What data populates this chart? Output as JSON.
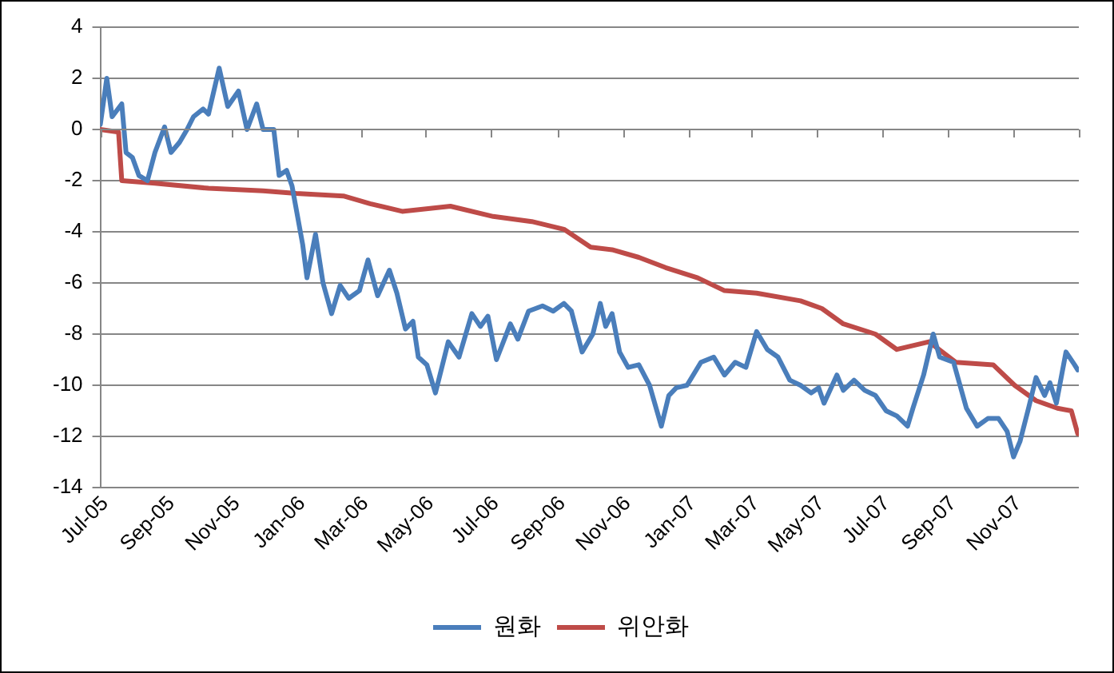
{
  "chart_data": {
    "type": "line",
    "grid": "y",
    "legend": "bottom",
    "line_style": "solid",
    "marker": "none",
    "xlim": [
      "2005-07",
      "2008-01"
    ],
    "xticks": [
      {
        "value": "2005-07",
        "label": "Jul-05"
      },
      {
        "value": "2005-09",
        "label": "Sep-05"
      },
      {
        "value": "2005-11",
        "label": "Nov-05"
      },
      {
        "value": "2006-01",
        "label": "Jan-06"
      },
      {
        "value": "2006-03",
        "label": "Mar-06"
      },
      {
        "value": "2006-05",
        "label": "May-06"
      },
      {
        "value": "2006-07",
        "label": "Jul-06"
      },
      {
        "value": "2006-09",
        "label": "Sep-06"
      },
      {
        "value": "2006-11",
        "label": "Nov-06"
      },
      {
        "value": "2007-01",
        "label": "Jan-07"
      },
      {
        "value": "2007-03",
        "label": "Mar-07"
      },
      {
        "value": "2007-05",
        "label": "May-07"
      },
      {
        "value": "2007-07",
        "label": "Jul-07"
      },
      {
        "value": "2007-09",
        "label": "Sep-07"
      },
      {
        "value": "2007-11",
        "label": "Nov-07"
      },
      {
        "value": "2008-01",
        "label": null
      }
    ],
    "ylim": [
      -14,
      4
    ],
    "yticks": [
      -14,
      -12,
      -10,
      -8,
      -6,
      -4,
      -2,
      0,
      2,
      4
    ],
    "series": [
      {
        "name": "원화",
        "color": "#4a7ebb",
        "x": [
          "2005-07-01",
          "2005-07-07",
          "2005-07-12",
          "2005-07-21",
          "2005-07-25",
          "2005-07-31",
          "2005-08-06",
          "2005-08-14",
          "2005-08-21",
          "2005-08-30",
          "2005-09-05",
          "2005-09-13",
          "2005-09-20",
          "2005-09-26",
          "2005-10-05",
          "2005-10-10",
          "2005-10-20",
          "2005-10-28",
          "2005-11-07",
          "2005-11-15",
          "2005-11-24",
          "2005-11-30",
          "2005-12-10",
          "2005-12-15",
          "2005-12-22",
          "2005-12-27",
          "2006-01-06",
          "2006-01-10",
          "2006-01-18",
          "2006-01-25",
          "2006-02-02",
          "2006-02-10",
          "2006-02-18",
          "2006-02-28",
          "2006-03-08",
          "2006-03-17",
          "2006-03-28",
          "2006-04-04",
          "2006-04-12",
          "2006-04-19",
          "2006-04-24",
          "2006-05-02",
          "2006-05-10",
          "2006-05-22",
          "2006-06-01",
          "2006-06-13",
          "2006-06-21",
          "2006-06-28",
          "2006-07-06",
          "2006-07-19",
          "2006-07-26",
          "2006-08-05",
          "2006-08-18",
          "2006-08-28",
          "2006-09-07",
          "2006-09-14",
          "2006-09-24",
          "2006-10-04",
          "2006-10-11",
          "2006-10-16",
          "2006-10-22",
          "2006-10-29",
          "2006-11-06",
          "2006-11-16",
          "2006-11-26",
          "2006-12-07",
          "2006-12-14",
          "2006-12-21",
          "2006-12-31",
          "2007-01-13",
          "2007-01-25",
          "2007-02-04",
          "2007-02-14",
          "2007-02-24",
          "2007-03-06",
          "2007-03-16",
          "2007-03-26",
          "2007-04-06",
          "2007-04-16",
          "2007-04-26",
          "2007-05-03",
          "2007-05-08",
          "2007-05-20",
          "2007-05-26",
          "2007-06-05",
          "2007-06-15",
          "2007-06-25",
          "2007-07-05",
          "2007-07-15",
          "2007-07-25",
          "2007-07-30",
          "2007-08-09",
          "2007-08-18",
          "2007-08-24",
          "2007-09-06",
          "2007-09-18",
          "2007-09-28",
          "2007-10-08",
          "2007-10-18",
          "2007-10-26",
          "2007-11-01",
          "2007-11-07",
          "2007-11-15",
          "2007-11-22",
          "2007-11-30",
          "2007-12-05",
          "2007-12-11",
          "2007-12-20",
          "2007-12-28",
          "2007-12-31"
        ],
        "values": [
          0.2,
          2.0,
          0.5,
          1.0,
          -0.9,
          -1.1,
          -1.8,
          -2.0,
          -0.9,
          0.1,
          -0.9,
          -0.5,
          0,
          0.5,
          0.8,
          0.6,
          2.4,
          0.9,
          1.5,
          0,
          1.0,
          0,
          0,
          -1.8,
          -1.6,
          -2.2,
          -4.5,
          -5.8,
          -4.1,
          -6.0,
          -7.2,
          -6.1,
          -6.6,
          -6.3,
          -5.1,
          -6.5,
          -5.5,
          -6.4,
          -7.8,
          -7.5,
          -8.9,
          -9.2,
          -10.3,
          -8.3,
          -8.9,
          -7.2,
          -7.7,
          -7.3,
          -9.0,
          -7.6,
          -8.2,
          -7.1,
          -6.9,
          -7.1,
          -6.8,
          -7.1,
          -8.7,
          -8.0,
          -6.8,
          -7.7,
          -7.2,
          -8.7,
          -9.3,
          -9.2,
          -10.0,
          -11.6,
          -10.4,
          -10.1,
          -10.0,
          -9.1,
          -8.9,
          -9.6,
          -9.1,
          -9.3,
          -7.9,
          -8.6,
          -8.9,
          -9.8,
          -10.0,
          -10.3,
          -10.1,
          -10.7,
          -9.6,
          -10.2,
          -9.8,
          -10.2,
          -10.4,
          -11.0,
          -11.2,
          -11.6,
          -10.9,
          -9.6,
          -8.0,
          -8.9,
          -9.1,
          -10.9,
          -11.6,
          -11.3,
          -11.3,
          -11.8,
          -12.8,
          -12.2,
          -10.9,
          -9.7,
          -10.4,
          -9.9,
          -10.7,
          -8.7,
          -9.2,
          -9.4
        ]
      },
      {
        "name": "위안화",
        "color": "#be4b48",
        "x": [
          "2005-07-01",
          "2005-07-18",
          "2005-07-21",
          "2005-08-21",
          "2005-10-10",
          "2005-11-30",
          "2005-12-31",
          "2006-02-13",
          "2006-03-10",
          "2006-04-09",
          "2006-05-24",
          "2006-07-03",
          "2006-08-08",
          "2006-09-07",
          "2006-10-02",
          "2006-10-22",
          "2006-11-16",
          "2006-12-11",
          "2007-01-10",
          "2007-02-04",
          "2007-03-06",
          "2007-04-16",
          "2007-05-06",
          "2007-05-26",
          "2007-06-25",
          "2007-07-15",
          "2007-08-14",
          "2007-09-08",
          "2007-10-13",
          "2007-11-02",
          "2007-11-22",
          "2007-12-12",
          "2007-12-25",
          "2007-12-31"
        ],
        "values": [
          0,
          -0.1,
          -2.0,
          -2.1,
          -2.3,
          -2.4,
          -2.5,
          -2.6,
          -2.9,
          -3.2,
          -3.0,
          -3.4,
          -3.6,
          -3.9,
          -4.6,
          -4.7,
          -5.0,
          -5.4,
          -5.8,
          -6.3,
          -6.4,
          -6.7,
          -7.0,
          -7.6,
          -8.0,
          -8.6,
          -8.3,
          -9.1,
          -9.2,
          -10.0,
          -10.6,
          -10.9,
          -11.0,
          -11.9
        ]
      }
    ]
  }
}
